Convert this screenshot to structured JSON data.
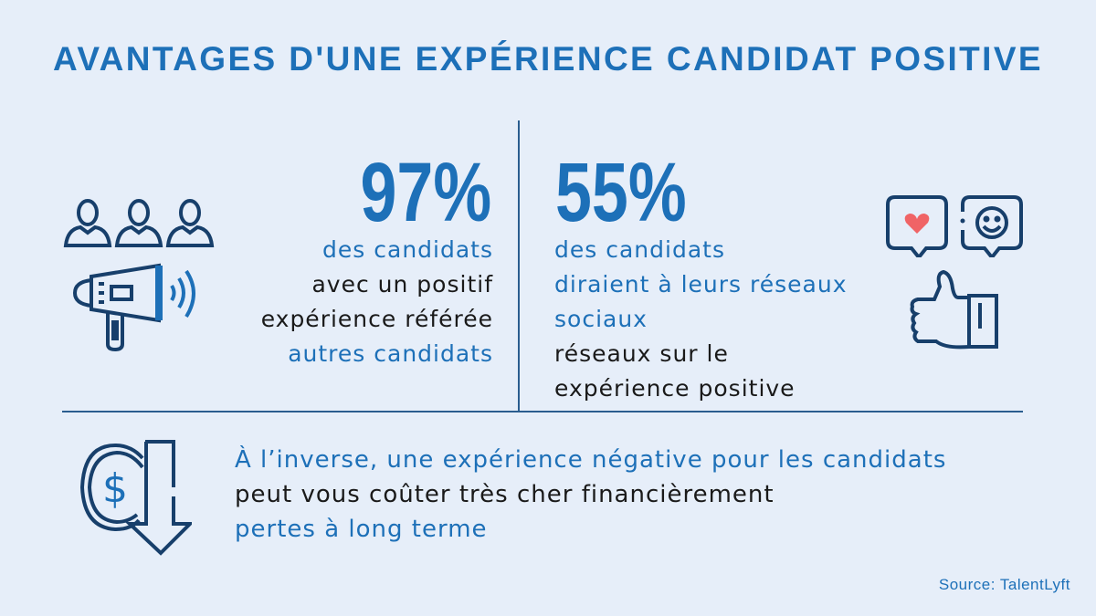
{
  "title": "AVANTAGES D'UNE EXPÉRIENCE CANDIDAT POSITIVE",
  "left_stat": {
    "value": "97%",
    "line1": "des candidats",
    "line2": "avec un positif",
    "line3": "expérience référée",
    "line4": "autres candidats"
  },
  "right_stat": {
    "value": "55%",
    "line1": "des candidats",
    "line2": "diraient à leurs réseaux",
    "line3": "sociaux",
    "line4": "réseaux sur le",
    "line5": "expérience positive"
  },
  "bottom": {
    "line1": "À l’inverse, une expérience négative pour les candidats",
    "line2": "peut vous coûter très cher financièrement",
    "line3": "pertes à long terme"
  },
  "source": "Source: TalentLyft",
  "colors": {
    "background": "#e6eef9",
    "accent": "#1d70b8",
    "navy": "#173f6b",
    "heart": "#f06466"
  }
}
